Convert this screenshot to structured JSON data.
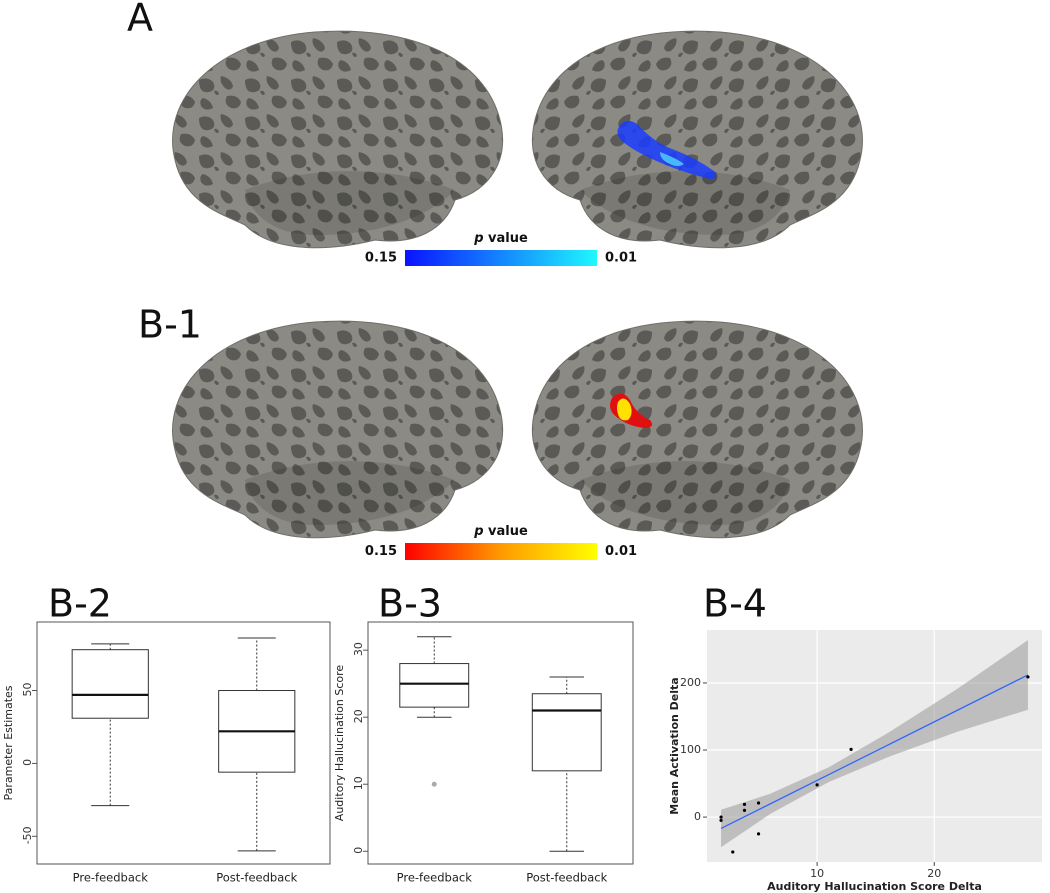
{
  "chart_data": [
    {
      "type": "colorbar",
      "title": "A",
      "label_symbol": "p",
      "label": "value",
      "clim": [
        0.15,
        0.01
      ],
      "ticks": [
        0.15,
        0.01
      ],
      "colors": [
        "#0a14ff",
        "#1ef8ff"
      ],
      "blob_color": "#1a3cff"
    },
    {
      "type": "colorbar",
      "title": "B-1",
      "label_symbol": "p",
      "label": "value",
      "clim": [
        0.15,
        0.01
      ],
      "ticks": [
        0.15,
        0.01
      ],
      "colors": [
        "#ff0000",
        "#ff9a00",
        "#ffff00"
      ],
      "blob_color": "#e01010"
    },
    {
      "type": "box",
      "title": "B-2",
      "ylabel": "Parameter Estimates",
      "categories": [
        "Pre-feedback",
        "Post-feedback"
      ],
      "boxes": [
        {
          "min": -29,
          "q1": 31,
          "median": 47,
          "q3": 78,
          "max": 82
        },
        {
          "min": -60,
          "q1": -6,
          "median": 22,
          "q3": 50,
          "max": 86
        }
      ],
      "ylim": [
        -69,
        97
      ],
      "yticks": [
        -50,
        0,
        50
      ],
      "color": "#333333"
    },
    {
      "type": "box",
      "title": "B-3",
      "ylabel": "Auditory Hallucination Score",
      "categories": [
        "Pre-feedback",
        "Post-feedback"
      ],
      "boxes": [
        {
          "min": 20,
          "q1": 21.5,
          "median": 25,
          "q3": 28,
          "max": 32,
          "outliers": [
            10
          ]
        },
        {
          "min": 0,
          "q1": 12,
          "median": 21,
          "q3": 23.5,
          "max": 26
        }
      ],
      "ylim": [
        -1.9,
        34.2
      ],
      "yticks": [
        0,
        10,
        20,
        30
      ],
      "color": "#333333"
    },
    {
      "type": "scatter",
      "title": "B-4",
      "xlabel": "Auditory Hallucination Score Delta",
      "ylabel": "Mean Activation Delta",
      "x": [
        1.8,
        1.8,
        2.8,
        3.8,
        3.8,
        5,
        5,
        10,
        12.9,
        28
      ],
      "y": [
        0,
        -5,
        -52,
        19,
        10,
        21,
        -25,
        48,
        101,
        209
      ],
      "xlim": [
        0.6,
        29.2
      ],
      "ylim": [
        -67,
        279
      ],
      "xticks": [
        10,
        20
      ],
      "yticks": [
        0,
        100,
        200
      ],
      "fit": {
        "x": [
          1.8,
          6,
          11,
          16,
          22,
          28
        ],
        "y": [
          -17,
          19.7,
          63.4,
          107,
          159.5,
          212
        ],
        "lower": [
          -45,
          4.7,
          52.4,
          89,
          127.5,
          160
        ],
        "upper": [
          11,
          34.7,
          74.4,
          125,
          191.5,
          264
        ]
      },
      "color": "#000000",
      "line_color": "#3366ff",
      "band_color": "#999999",
      "panel_color": "#ebebeb",
      "grid": true
    }
  ]
}
